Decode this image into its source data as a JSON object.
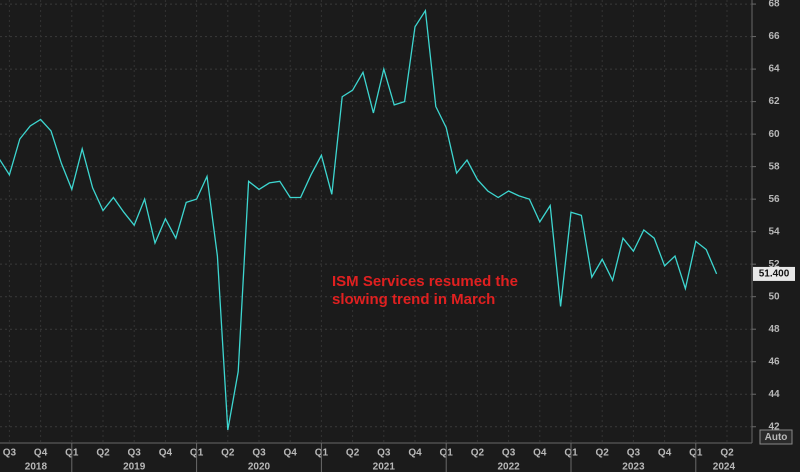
{
  "chart_data": {
    "type": "line",
    "series": [
      {
        "name": "ISM Services",
        "color": "#3dd6d0",
        "values": [
          58.5,
          57.5,
          59.7,
          60.5,
          60.9,
          60.2,
          58.2,
          56.6,
          59.1,
          56.7,
          55.3,
          56.1,
          55.2,
          54.4,
          56.0,
          53.3,
          54.8,
          53.6,
          55.8,
          56.0,
          57.4,
          52.5,
          41.8,
          45.4,
          57.1,
          56.6,
          57.0,
          57.1,
          56.1,
          56.1,
          57.5,
          58.7,
          56.3,
          62.3,
          62.7,
          63.8,
          61.3,
          64.0,
          61.8,
          62.0,
          66.6,
          67.6,
          61.7,
          60.4,
          57.6,
          58.4,
          57.2,
          56.5,
          56.1,
          56.5,
          56.2,
          56.0,
          54.6,
          55.6,
          49.4,
          55.2,
          55.0,
          51.2,
          52.3,
          51.0,
          53.6,
          52.8,
          54.1,
          53.6,
          51.9,
          52.5,
          50.5,
          53.4,
          52.9,
          51.4
        ]
      }
    ],
    "last_value_label": "51.400",
    "quarters": [
      "Q3",
      "Q4",
      "Q1",
      "Q2",
      "Q3",
      "Q4",
      "Q1",
      "Q2",
      "Q3",
      "Q4",
      "Q1",
      "Q2",
      "Q3",
      "Q4",
      "Q1",
      "Q2",
      "Q3",
      "Q4",
      "Q1",
      "Q2",
      "Q3",
      "Q4",
      "Q1",
      "Q2"
    ],
    "years": [
      "2018",
      "2019",
      "2020",
      "2021",
      "2022",
      "2023",
      "2024"
    ],
    "ylim": [
      41,
      68.25
    ],
    "yticks": [
      42,
      44,
      46,
      48,
      50,
      52,
      54,
      56,
      58,
      60,
      62,
      64,
      66,
      68
    ],
    "grid": true,
    "annotation": [
      "ISM Services resumed the",
      "slowing trend in March"
    ],
    "button": "Auto"
  }
}
